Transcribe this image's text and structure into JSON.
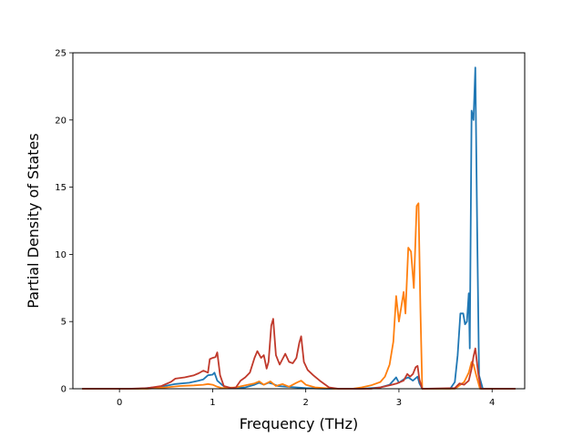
{
  "chart_data": {
    "type": "line",
    "title": "",
    "xlabel": "Frequency (THz)",
    "ylabel": "Partial Density of States",
    "xlim": [
      -0.5,
      4.35
    ],
    "ylim": [
      0,
      25
    ],
    "xticks": [
      0,
      1,
      2,
      3,
      4
    ],
    "yticks": [
      0,
      5,
      10,
      15,
      20,
      25
    ],
    "grid": false,
    "legend": "none",
    "series": [
      {
        "color": "#1f77b4",
        "points": [
          [
            -0.4,
            0
          ],
          [
            0.2,
            0
          ],
          [
            0.45,
            0.15
          ],
          [
            0.6,
            0.35
          ],
          [
            0.75,
            0.45
          ],
          [
            0.85,
            0.6
          ],
          [
            0.9,
            0.7
          ],
          [
            0.95,
            1.0
          ],
          [
            1.0,
            1.05
          ],
          [
            1.02,
            1.2
          ],
          [
            1.05,
            0.6
          ],
          [
            1.1,
            0.3
          ],
          [
            1.15,
            0.05
          ],
          [
            1.25,
            0.05
          ],
          [
            1.35,
            0.1
          ],
          [
            1.45,
            0.3
          ],
          [
            1.5,
            0.45
          ],
          [
            1.55,
            0.3
          ],
          [
            1.6,
            0.45
          ],
          [
            1.65,
            0.35
          ],
          [
            1.7,
            0.2
          ],
          [
            1.8,
            0.15
          ],
          [
            1.9,
            0.1
          ],
          [
            2.0,
            0.05
          ],
          [
            2.2,
            0
          ],
          [
            2.6,
            0
          ],
          [
            2.8,
            0.1
          ],
          [
            2.9,
            0.3
          ],
          [
            2.97,
            0.85
          ],
          [
            3.0,
            0.45
          ],
          [
            3.05,
            0.7
          ],
          [
            3.1,
            0.85
          ],
          [
            3.15,
            0.6
          ],
          [
            3.2,
            0.9
          ],
          [
            3.22,
            0.4
          ],
          [
            3.25,
            0
          ],
          [
            3.55,
            0
          ],
          [
            3.6,
            0.5
          ],
          [
            3.63,
            2.5
          ],
          [
            3.66,
            5.6
          ],
          [
            3.69,
            5.6
          ],
          [
            3.71,
            4.8
          ],
          [
            3.73,
            5.0
          ],
          [
            3.75,
            7.1
          ],
          [
            3.76,
            3.0
          ],
          [
            3.78,
            20.7
          ],
          [
            3.8,
            20.0
          ],
          [
            3.82,
            23.9
          ],
          [
            3.84,
            12.0
          ],
          [
            3.86,
            1.0
          ],
          [
            3.9,
            0
          ],
          [
            4.25,
            0
          ]
        ]
      },
      {
        "color": "#ff7f0e",
        "points": [
          [
            -0.4,
            0
          ],
          [
            0.3,
            0
          ],
          [
            0.5,
            0.1
          ],
          [
            0.65,
            0.2
          ],
          [
            0.8,
            0.25
          ],
          [
            0.9,
            0.3
          ],
          [
            0.95,
            0.35
          ],
          [
            1.0,
            0.3
          ],
          [
            1.05,
            0.15
          ],
          [
            1.1,
            0.05
          ],
          [
            1.25,
            0.1
          ],
          [
            1.35,
            0.25
          ],
          [
            1.45,
            0.4
          ],
          [
            1.5,
            0.55
          ],
          [
            1.55,
            0.3
          ],
          [
            1.62,
            0.55
          ],
          [
            1.68,
            0.2
          ],
          [
            1.75,
            0.35
          ],
          [
            1.82,
            0.15
          ],
          [
            1.9,
            0.45
          ],
          [
            1.95,
            0.6
          ],
          [
            2.0,
            0.3
          ],
          [
            2.1,
            0.1
          ],
          [
            2.3,
            0
          ],
          [
            2.5,
            0
          ],
          [
            2.6,
            0.1
          ],
          [
            2.7,
            0.25
          ],
          [
            2.8,
            0.5
          ],
          [
            2.85,
            0.9
          ],
          [
            2.9,
            1.8
          ],
          [
            2.94,
            3.5
          ],
          [
            2.97,
            6.9
          ],
          [
            3.0,
            5.0
          ],
          [
            3.03,
            6.3
          ],
          [
            3.05,
            7.2
          ],
          [
            3.07,
            5.6
          ],
          [
            3.1,
            10.5
          ],
          [
            3.13,
            10.2
          ],
          [
            3.16,
            7.5
          ],
          [
            3.19,
            13.6
          ],
          [
            3.21,
            13.8
          ],
          [
            3.23,
            6.0
          ],
          [
            3.25,
            0
          ],
          [
            3.6,
            0
          ],
          [
            3.7,
            0.5
          ],
          [
            3.75,
            1.2
          ],
          [
            3.78,
            2.0
          ],
          [
            3.8,
            1.8
          ],
          [
            3.83,
            1.0
          ],
          [
            3.87,
            0
          ],
          [
            4.25,
            0
          ]
        ]
      },
      {
        "color": "#c0392b",
        "points": [
          [
            -0.4,
            0
          ],
          [
            0.1,
            0
          ],
          [
            0.3,
            0.05
          ],
          [
            0.45,
            0.2
          ],
          [
            0.55,
            0.5
          ],
          [
            0.6,
            0.75
          ],
          [
            0.7,
            0.85
          ],
          [
            0.8,
            1.0
          ],
          [
            0.85,
            1.15
          ],
          [
            0.9,
            1.35
          ],
          [
            0.95,
            1.2
          ],
          [
            0.97,
            2.2
          ],
          [
            1.0,
            2.3
          ],
          [
            1.03,
            2.35
          ],
          [
            1.05,
            2.7
          ],
          [
            1.08,
            1.0
          ],
          [
            1.12,
            0.2
          ],
          [
            1.2,
            0.05
          ],
          [
            1.25,
            0.1
          ],
          [
            1.3,
            0.6
          ],
          [
            1.35,
            0.85
          ],
          [
            1.4,
            1.2
          ],
          [
            1.45,
            2.3
          ],
          [
            1.48,
            2.8
          ],
          [
            1.52,
            2.3
          ],
          [
            1.55,
            2.5
          ],
          [
            1.58,
            1.5
          ],
          [
            1.6,
            2.0
          ],
          [
            1.63,
            4.7
          ],
          [
            1.65,
            5.2
          ],
          [
            1.68,
            2.5
          ],
          [
            1.72,
            1.8
          ],
          [
            1.75,
            2.2
          ],
          [
            1.78,
            2.6
          ],
          [
            1.82,
            2.0
          ],
          [
            1.86,
            1.9
          ],
          [
            1.9,
            2.3
          ],
          [
            1.93,
            3.4
          ],
          [
            1.95,
            3.9
          ],
          [
            1.98,
            2.0
          ],
          [
            2.02,
            1.4
          ],
          [
            2.08,
            1.0
          ],
          [
            2.15,
            0.6
          ],
          [
            2.25,
            0.1
          ],
          [
            2.35,
            0
          ],
          [
            2.7,
            0
          ],
          [
            2.8,
            0.1
          ],
          [
            2.9,
            0.25
          ],
          [
            2.98,
            0.4
          ],
          [
            3.05,
            0.6
          ],
          [
            3.09,
            1.1
          ],
          [
            3.12,
            0.9
          ],
          [
            3.15,
            1.1
          ],
          [
            3.18,
            1.6
          ],
          [
            3.2,
            1.7
          ],
          [
            3.22,
            0.7
          ],
          [
            3.25,
            0
          ],
          [
            3.6,
            0.05
          ],
          [
            3.65,
            0.4
          ],
          [
            3.7,
            0.3
          ],
          [
            3.75,
            0.6
          ],
          [
            3.78,
            1.5
          ],
          [
            3.8,
            2.4
          ],
          [
            3.82,
            3.0
          ],
          [
            3.85,
            1.2
          ],
          [
            3.88,
            0
          ],
          [
            4.25,
            0
          ]
        ]
      }
    ]
  }
}
